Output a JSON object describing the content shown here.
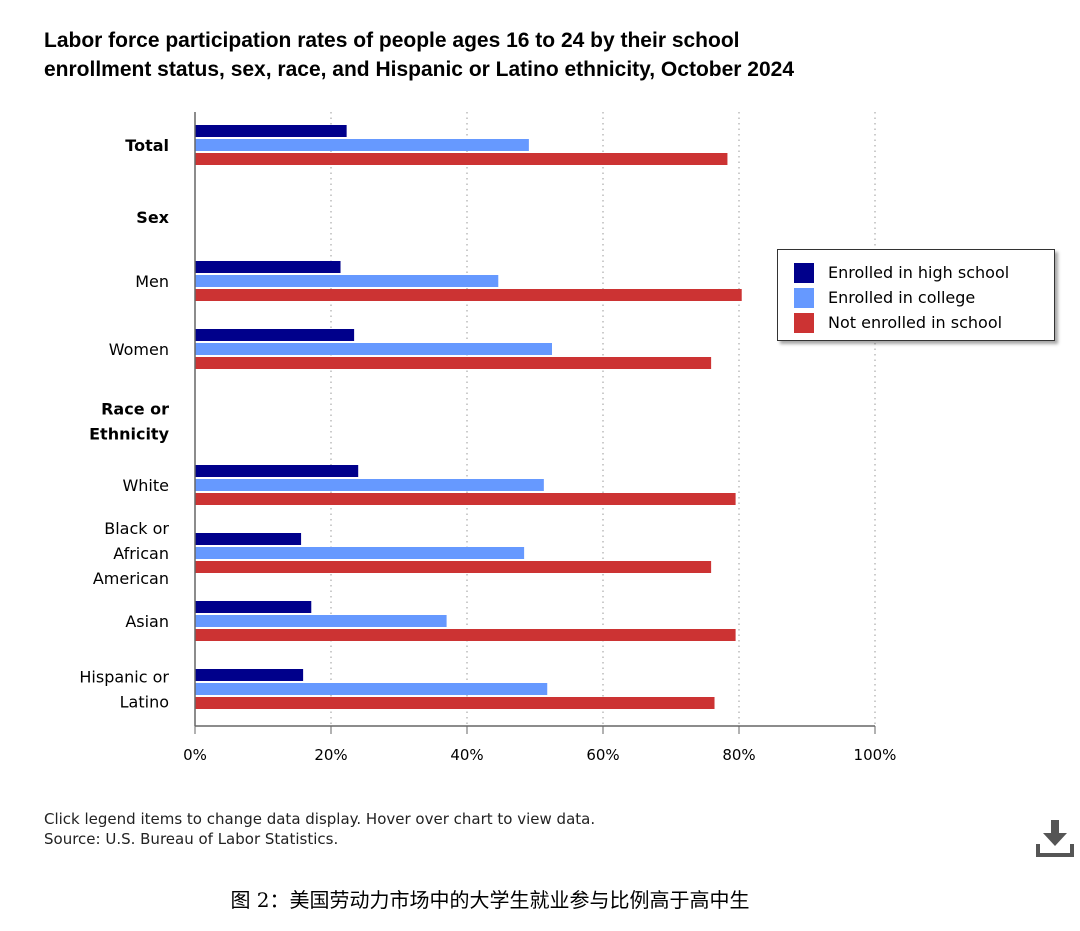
{
  "chart_data": {
    "type": "bar",
    "orientation": "horizontal",
    "title_lines": [
      "Labor force participation rates of people ages 16 to 24 by their school",
      "enrollment status, sex, race, and Hispanic or Latino ethnicity, October 2024"
    ],
    "rows": [
      {
        "label_lines": [
          "Total"
        ],
        "bold": true,
        "values": [
          22.3,
          49.1,
          78.3
        ]
      },
      {
        "label_lines": [
          "Sex"
        ],
        "bold": true,
        "values": null
      },
      {
        "label_lines": [
          "Men"
        ],
        "bold": false,
        "values": [
          21.4,
          44.6,
          80.4
        ]
      },
      {
        "label_lines": [
          "Women"
        ],
        "bold": false,
        "values": [
          23.4,
          52.5,
          75.9
        ]
      },
      {
        "label_lines": [
          "Race or",
          "Ethnicity"
        ],
        "bold": true,
        "values": null
      },
      {
        "label_lines": [
          "White"
        ],
        "bold": false,
        "values": [
          24.0,
          51.3,
          79.5
        ]
      },
      {
        "label_lines": [
          "Black or",
          "African",
          "American"
        ],
        "bold": false,
        "values": [
          15.6,
          48.4,
          75.9
        ]
      },
      {
        "label_lines": [
          "Asian"
        ],
        "bold": false,
        "values": [
          17.1,
          37.0,
          79.5
        ]
      },
      {
        "label_lines": [
          "Hispanic or",
          "Latino"
        ],
        "bold": false,
        "values": [
          15.9,
          51.8,
          76.4
        ]
      }
    ],
    "series": [
      {
        "name": "Enrolled in high school",
        "color": "#00008b"
      },
      {
        "name": "Enrolled in college",
        "color": "#6699ff"
      },
      {
        "name": "Not enrolled in school",
        "color": "#cc3333"
      }
    ],
    "xlim": [
      0,
      100
    ],
    "ticks": [
      0,
      20,
      40,
      60,
      80,
      100
    ],
    "tick_suffix": "%",
    "grid": "vertical dotted",
    "legend_position": "right"
  },
  "notes": {
    "line1": "Click legend items to change data display. Hover over chart to view data.",
    "line2": "Source: U.S. Bureau of Labor Statistics."
  },
  "download_icon": "download-icon",
  "caption": "图 2：美国劳动力市场中的大学生就业参与比例高于高中生"
}
